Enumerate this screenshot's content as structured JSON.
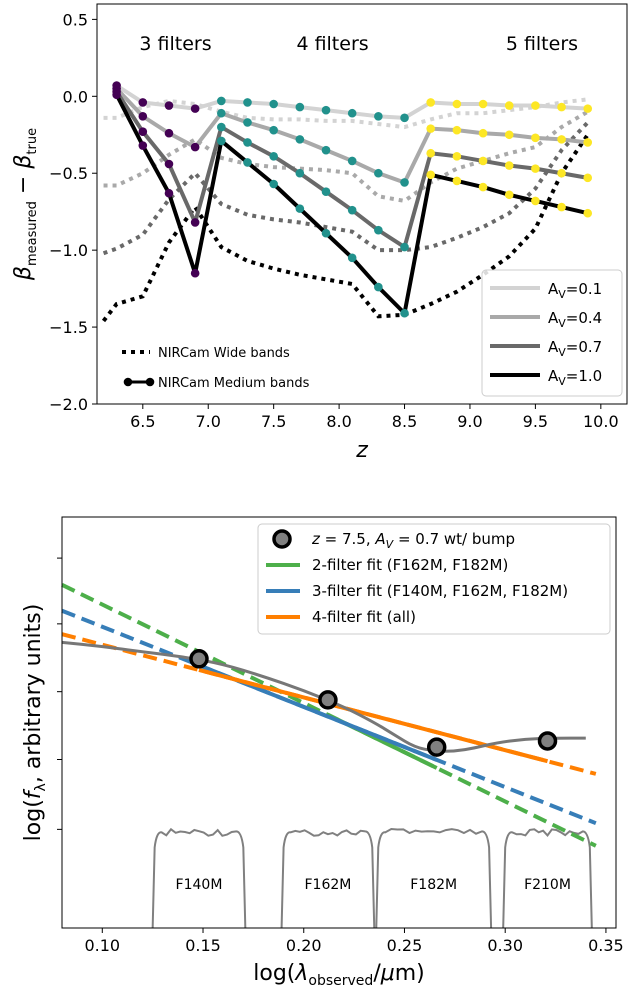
{
  "chart_data": [
    {
      "type": "line",
      "xlabel": "z",
      "ylabel": "β_measured − β_true",
      "xlim": [
        6.15,
        10.2
      ],
      "ylim": [
        -2.0,
        0.6
      ],
      "xticks": [
        6.5,
        7.0,
        7.5,
        8.0,
        8.5,
        9.0,
        9.5,
        10.0
      ],
      "xtick_labels": [
        "6.5",
        "7.0",
        "7.5",
        "8.0",
        "8.5",
        "9.0",
        "9.5",
        "10.0"
      ],
      "yticks": [
        0.5,
        0.0,
        -0.5,
        -1.0,
        -1.5,
        -2.0
      ],
      "ytick_labels": [
        "0.5",
        "0.0",
        "−0.5",
        "−1.0",
        "−1.5",
        "−2.0"
      ],
      "annotations": [
        {
          "text": "3 filters",
          "color": "#5b2b8a",
          "x": 6.75,
          "y": 0.34
        },
        {
          "text": "4 filters",
          "color": "#21918c",
          "x": 7.95,
          "y": 0.34
        },
        {
          "text": "5 filters",
          "color": "#f1d534",
          "x": 9.55,
          "y": 0.34
        }
      ],
      "legend": {
        "placement": "lower-right",
        "entries": [
          "A_V=0.1",
          "A_V=0.4",
          "A_V=0.7",
          "A_V=1.0"
        ],
        "colors": [
          "#d3d3d3",
          "#a9a9a9",
          "#696969",
          "#000000"
        ]
      },
      "style_legend": {
        "placement": "lower-left",
        "entries": [
          {
            "label": "NIRCam Wide bands",
            "style": "dotted"
          },
          {
            "label": "NIRCam Medium bands",
            "style": "solid-marker"
          }
        ]
      },
      "marker_colors": {
        "3": "#440154",
        "4": "#21918c",
        "5": "#fde725"
      },
      "series": [
        {
          "name": "A_V=0.1",
          "color": "#d3d3d3",
          "medium": [
            [
              6.3,
              0.07
            ],
            [
              6.5,
              -0.04
            ],
            [
              6.7,
              -0.06
            ],
            [
              6.9,
              -0.08
            ],
            [
              7.1,
              -0.03
            ],
            [
              7.3,
              -0.04
            ],
            [
              7.5,
              -0.05
            ],
            [
              7.7,
              -0.07
            ],
            [
              7.9,
              -0.09
            ],
            [
              8.1,
              -0.11
            ],
            [
              8.3,
              -0.13
            ],
            [
              8.5,
              -0.14
            ],
            [
              8.7,
              -0.04
            ],
            [
              8.9,
              -0.05
            ],
            [
              9.1,
              -0.05
            ],
            [
              9.3,
              -0.06
            ],
            [
              9.5,
              -0.06
            ],
            [
              9.7,
              -0.07
            ],
            [
              9.9,
              -0.08
            ]
          ],
          "wide": [
            [
              6.2,
              -0.14
            ],
            [
              6.3,
              -0.14
            ],
            [
              6.5,
              -0.07
            ],
            [
              6.7,
              -0.03
            ],
            [
              6.9,
              -0.05
            ],
            [
              7.1,
              -0.1
            ],
            [
              7.3,
              -0.14
            ],
            [
              7.5,
              -0.15
            ],
            [
              7.7,
              -0.15
            ],
            [
              7.9,
              -0.16
            ],
            [
              8.1,
              -0.16
            ],
            [
              8.3,
              -0.18
            ],
            [
              8.5,
              -0.2
            ],
            [
              8.7,
              -0.15
            ],
            [
              8.9,
              -0.11
            ],
            [
              9.1,
              -0.11
            ],
            [
              9.3,
              -0.09
            ],
            [
              9.5,
              -0.07
            ],
            [
              9.7,
              -0.04
            ],
            [
              9.9,
              -0.02
            ]
          ]
        },
        {
          "name": "A_V=0.4",
          "color": "#a9a9a9",
          "medium": [
            [
              6.3,
              0.05
            ],
            [
              6.5,
              -0.13
            ],
            [
              6.7,
              -0.24
            ],
            [
              6.9,
              -0.33
            ],
            [
              7.1,
              -0.11
            ],
            [
              7.3,
              -0.17
            ],
            [
              7.5,
              -0.22
            ],
            [
              7.7,
              -0.28
            ],
            [
              7.9,
              -0.35
            ],
            [
              8.1,
              -0.42
            ],
            [
              8.3,
              -0.5
            ],
            [
              8.5,
              -0.56
            ],
            [
              8.7,
              -0.21
            ],
            [
              8.9,
              -0.22
            ],
            [
              9.1,
              -0.24
            ],
            [
              9.3,
              -0.25
            ],
            [
              9.5,
              -0.27
            ],
            [
              9.7,
              -0.28
            ],
            [
              9.9,
              -0.3
            ]
          ],
          "wide": [
            [
              6.2,
              -0.58
            ],
            [
              6.3,
              -0.58
            ],
            [
              6.5,
              -0.5
            ],
            [
              6.7,
              -0.38
            ],
            [
              6.9,
              -0.28
            ],
            [
              7.1,
              -0.4
            ],
            [
              7.3,
              -0.44
            ],
            [
              7.5,
              -0.46
            ],
            [
              7.7,
              -0.47
            ],
            [
              7.9,
              -0.48
            ],
            [
              8.1,
              -0.5
            ],
            [
              8.3,
              -0.65
            ],
            [
              8.5,
              -0.68
            ],
            [
              8.7,
              -0.56
            ],
            [
              8.9,
              -0.47
            ],
            [
              9.1,
              -0.42
            ],
            [
              9.3,
              -0.37
            ],
            [
              9.5,
              -0.33
            ],
            [
              9.7,
              -0.2
            ],
            [
              9.9,
              -0.1
            ]
          ]
        },
        {
          "name": "A_V=0.7",
          "color": "#696969",
          "medium": [
            [
              6.3,
              0.03
            ],
            [
              6.5,
              -0.23
            ],
            [
              6.7,
              -0.44
            ],
            [
              6.9,
              -0.82
            ],
            [
              7.1,
              -0.2
            ],
            [
              7.3,
              -0.3
            ],
            [
              7.5,
              -0.39
            ],
            [
              7.7,
              -0.5
            ],
            [
              7.9,
              -0.62
            ],
            [
              8.1,
              -0.74
            ],
            [
              8.3,
              -0.87
            ],
            [
              8.5,
              -0.98
            ],
            [
              8.7,
              -0.37
            ],
            [
              8.9,
              -0.39
            ],
            [
              9.1,
              -0.42
            ],
            [
              9.3,
              -0.45
            ],
            [
              9.5,
              -0.47
            ],
            [
              9.7,
              -0.5
            ],
            [
              9.9,
              -0.53
            ]
          ],
          "wide": [
            [
              6.2,
              -1.02
            ],
            [
              6.3,
              -0.99
            ],
            [
              6.5,
              -0.9
            ],
            [
              6.7,
              -0.67
            ],
            [
              6.9,
              -0.5
            ],
            [
              7.1,
              -0.7
            ],
            [
              7.3,
              -0.77
            ],
            [
              7.5,
              -0.8
            ],
            [
              7.7,
              -0.82
            ],
            [
              7.9,
              -0.85
            ],
            [
              8.1,
              -0.88
            ],
            [
              8.3,
              -1.0
            ],
            [
              8.5,
              -1.0
            ],
            [
              8.7,
              -0.98
            ],
            [
              8.9,
              -0.92
            ],
            [
              9.1,
              -0.85
            ],
            [
              9.3,
              -0.76
            ],
            [
              9.5,
              -0.6
            ],
            [
              9.7,
              -0.35
            ],
            [
              9.9,
              -0.17
            ]
          ]
        },
        {
          "name": "A_V=1.0",
          "color": "#000000",
          "medium": [
            [
              6.3,
              0.01
            ],
            [
              6.5,
              -0.32
            ],
            [
              6.7,
              -0.63
            ],
            [
              6.9,
              -1.15
            ],
            [
              7.1,
              -0.29
            ],
            [
              7.3,
              -0.43
            ],
            [
              7.5,
              -0.57
            ],
            [
              7.7,
              -0.73
            ],
            [
              7.9,
              -0.89
            ],
            [
              8.1,
              -1.05
            ],
            [
              8.3,
              -1.24
            ],
            [
              8.5,
              -1.41
            ],
            [
              8.7,
              -0.51
            ],
            [
              8.9,
              -0.55
            ],
            [
              9.1,
              -0.59
            ],
            [
              9.3,
              -0.64
            ],
            [
              9.5,
              -0.68
            ],
            [
              9.7,
              -0.72
            ],
            [
              9.9,
              -0.76
            ]
          ],
          "wide": [
            [
              6.2,
              -1.46
            ],
            [
              6.3,
              -1.35
            ],
            [
              6.5,
              -1.3
            ],
            [
              6.7,
              -0.95
            ],
            [
              6.9,
              -0.72
            ],
            [
              7.1,
              -0.98
            ],
            [
              7.3,
              -1.07
            ],
            [
              7.5,
              -1.12
            ],
            [
              7.7,
              -1.16
            ],
            [
              7.9,
              -1.19
            ],
            [
              8.1,
              -1.22
            ],
            [
              8.3,
              -1.43
            ],
            [
              8.5,
              -1.42
            ],
            [
              8.7,
              -1.35
            ],
            [
              8.9,
              -1.27
            ],
            [
              9.1,
              -1.16
            ],
            [
              9.3,
              -1.04
            ],
            [
              9.5,
              -0.86
            ],
            [
              9.7,
              -0.5
            ],
            [
              9.9,
              -0.25
            ]
          ]
        }
      ]
    },
    {
      "type": "line",
      "xlabel": "log(λ_observed/μm)",
      "ylabel": "log(f_λ, arbitrary units)",
      "xlim": [
        0.08,
        0.355
      ],
      "ylim": [
        0,
        1
      ],
      "xticks": [
        0.1,
        0.15,
        0.2,
        0.25,
        0.3,
        0.35
      ],
      "xtick_labels": [
        "0.10",
        "0.15",
        "0.20",
        "0.25",
        "0.30",
        "0.35"
      ],
      "yticks": [
        0.9,
        0.74,
        0.575,
        0.41,
        0.24
      ],
      "legend": {
        "placement": "top-right",
        "entries": [
          {
            "label": "z = 7.5, A_V = 0.7 wt/ bump",
            "style": "marker",
            "color": "#808080"
          },
          {
            "label": "2-filter fit (F162M, F182M)",
            "style": "line",
            "color": "#4daf4a"
          },
          {
            "label": "3-filter fit (F140M, F162M, F182M)",
            "style": "line",
            "color": "#377eb8"
          },
          {
            "label": "4-filter fit (all)",
            "style": "line",
            "color": "#ff7f00"
          }
        ]
      },
      "photometry": [
        [
          0.148,
          0.655
        ],
        [
          0.212,
          0.555
        ],
        [
          0.266,
          0.44
        ],
        [
          0.321,
          0.455
        ]
      ],
      "spectrum": [
        [
          0.08,
          0.695
        ],
        [
          0.1,
          0.685
        ],
        [
          0.12,
          0.672
        ],
        [
          0.14,
          0.66
        ],
        [
          0.16,
          0.642
        ],
        [
          0.18,
          0.612
        ],
        [
          0.2,
          0.578
        ],
        [
          0.22,
          0.538
        ],
        [
          0.235,
          0.5
        ],
        [
          0.245,
          0.47
        ],
        [
          0.255,
          0.44
        ],
        [
          0.265,
          0.43
        ],
        [
          0.275,
          0.43
        ],
        [
          0.285,
          0.438
        ],
        [
          0.295,
          0.45
        ],
        [
          0.31,
          0.46
        ],
        [
          0.325,
          0.462
        ],
        [
          0.34,
          0.462
        ]
      ],
      "fits": [
        {
          "name": "2-filter fit (F162M, F182M)",
          "color": "#4daf4a",
          "x0": 0.08,
          "y0": 0.835,
          "x1": 0.345,
          "y1": 0.2,
          "solid_range": [
            0.212,
            0.266
          ]
        },
        {
          "name": "3-filter fit (F140M, F162M, F182M)",
          "color": "#377eb8",
          "x0": 0.08,
          "y0": 0.772,
          "x1": 0.345,
          "y1": 0.255,
          "solid_range": [
            0.148,
            0.266
          ]
        },
        {
          "name": "4-filter fit (all)",
          "color": "#ff7f00",
          "x0": 0.08,
          "y0": 0.715,
          "x1": 0.345,
          "y1": 0.375,
          "solid_range": [
            0.148,
            0.321
          ]
        }
      ],
      "filters": [
        {
          "name": "F140M",
          "x_low": 0.125,
          "x_high": 0.171
        },
        {
          "name": "F162M",
          "x_low": 0.189,
          "x_high": 0.235
        },
        {
          "name": "F182M",
          "x_low": 0.236,
          "x_high": 0.293
        },
        {
          "name": "F210M",
          "x_low": 0.299,
          "x_high": 0.343
        }
      ]
    }
  ]
}
